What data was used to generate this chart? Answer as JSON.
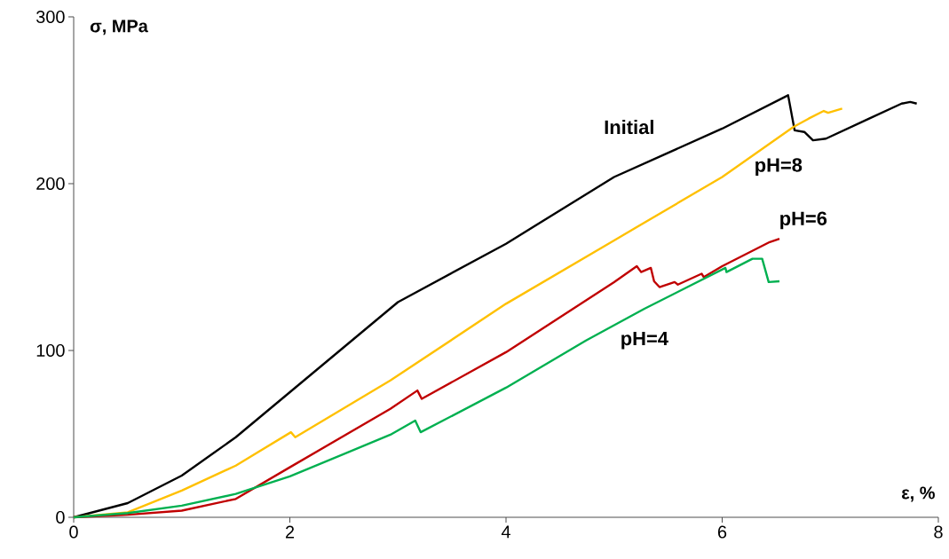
{
  "chart_data": {
    "type": "line",
    "xlabel": "ε, %",
    "ylabel": "σ, MPa",
    "xlim": [
      0,
      8
    ],
    "ylim": [
      0,
      300
    ],
    "xticks": [
      0,
      2,
      4,
      6,
      8
    ],
    "yticks": [
      0,
      100,
      200,
      300
    ],
    "grid": false,
    "legend": false,
    "marker": "none",
    "line_style": "solid",
    "series": [
      {
        "name": "Initial",
        "color": "#000000",
        "x": [
          0,
          0.5,
          1,
          1.5,
          2,
          3,
          4,
          5,
          6,
          6.61,
          6.67,
          6.76,
          6.84,
          6.96,
          7.36,
          7.66,
          7.74,
          7.8
        ],
        "values": [
          0,
          8.5,
          25,
          48,
          75,
          129,
          164,
          204,
          233,
          253,
          232,
          231,
          226,
          227,
          239,
          248,
          249,
          248
        ]
      },
      {
        "name": "pH=8",
        "color": "#ffc000",
        "x": [
          0,
          0.5,
          1,
          1.5,
          2.01,
          2.05,
          2.93,
          4,
          5,
          6,
          6.66,
          6.8,
          6.94,
          6.98,
          7.11
        ],
        "values": [
          0,
          3,
          16,
          31,
          51,
          48,
          82,
          128,
          166,
          204,
          234,
          239,
          243.6,
          242.5,
          245
        ]
      },
      {
        "name": "pH=6",
        "color": "#c00000",
        "x": [
          0,
          0.5,
          1,
          1.5,
          2,
          2.93,
          3.18,
          3.22,
          4,
          5,
          5.21,
          5.25,
          5.34,
          5.37,
          5.42,
          5.56,
          5.59,
          5.81,
          5.83,
          6,
          6.44,
          6.53
        ],
        "values": [
          0,
          1.5,
          4,
          11,
          30,
          65,
          76,
          71,
          99,
          141,
          150.5,
          147,
          149.5,
          141.5,
          138,
          141,
          139.5,
          146,
          144,
          150.5,
          165,
          167
        ]
      },
      {
        "name": "pH=4",
        "color": "#00b050",
        "x": [
          0,
          0.5,
          1,
          1.5,
          2,
          2.93,
          3.16,
          3.21,
          4,
          4.74,
          5.28,
          6.03,
          6.04,
          6.28,
          6.37,
          6.43,
          6.53
        ],
        "values": [
          0,
          2.5,
          7,
          14,
          24.5,
          49.5,
          58,
          51,
          77.7,
          106,
          125,
          149.5,
          147,
          155,
          155,
          141,
          141.5
        ]
      }
    ]
  }
}
